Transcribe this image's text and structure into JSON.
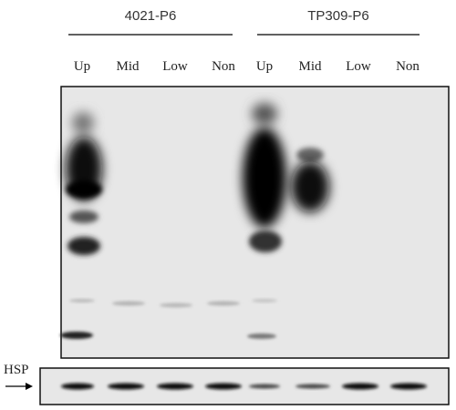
{
  "groups": [
    {
      "label": "4021-P6",
      "lanes": [
        "Up",
        "Mid",
        "Low",
        "Non"
      ]
    },
    {
      "label": "TP309-P6",
      "lanes": [
        "Up",
        "Mid",
        "Low",
        "Non"
      ]
    }
  ],
  "loading_control": {
    "label": "HSP"
  }
}
